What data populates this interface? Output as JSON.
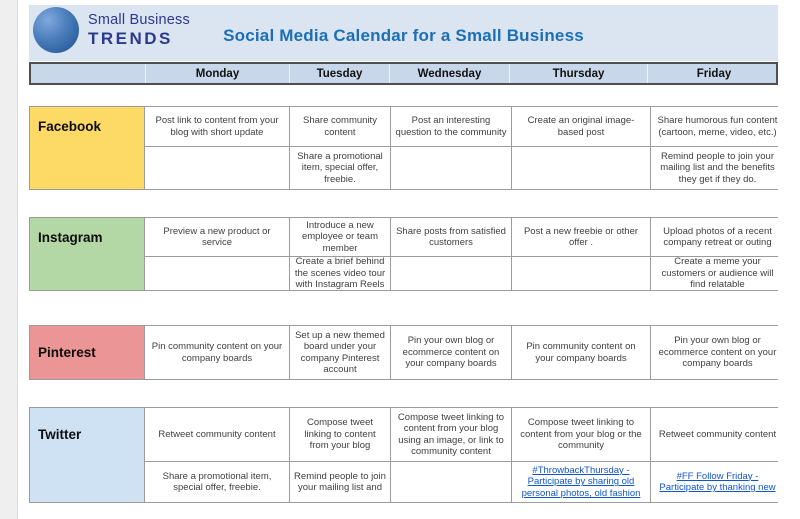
{
  "header": {
    "logo_line1": "Small Business",
    "logo_line2": "TRENDS",
    "title": "Social Media Calendar for a Small Business"
  },
  "colors": {
    "header_bg": "#dbe5f1",
    "day_row_bg": "#c8d7ea",
    "day_row_border": "#4f4f4f",
    "grid_border": "#9b9b9b",
    "title_text": "#1d6fb5",
    "logo_navy": "#2b3990",
    "link_blue": "#1155cc",
    "facebook": "#fdd965",
    "instagram": "#b4d7a6",
    "pinterest": "#ec9597",
    "twitter": "#cfe2f3"
  },
  "table": {
    "day_headers": [
      "Monday",
      "Tuesday",
      "Wednesday",
      "Thursday",
      "Friday"
    ],
    "platforms": [
      {
        "name": "Facebook",
        "color": "#fdd965",
        "rows": [
          [
            "Post link to content from your blog with short update",
            "Share community content",
            "Post an interesting question to the community",
            "Create an original image-based post",
            "Share humorous fun content (cartoon, meme, video, etc.)"
          ],
          [
            "",
            "Share a promotional item, special offer, freebie.",
            "",
            "",
            "Remind people to join your mailing list and the benefits they get if they do."
          ]
        ]
      },
      {
        "name": "Instagram",
        "color": "#b4d7a6",
        "rows": [
          [
            "Preview a new product or service",
            "Introduce a new employee or team member",
            "Share posts from satisfied customers",
            "Post a new freebie or other offer .",
            "Upload photos of a recent company retreat or outing"
          ],
          [
            "",
            "Create a brief behind the scenes video tour with Instagram Reels",
            "",
            "",
            "Create a meme your customers or audience will find relatable"
          ]
        ]
      },
      {
        "name": "Pinterest",
        "color": "#ec9597",
        "rows": [
          [
            "Pin community content on your company boards",
            "Set up a new themed board under your company Pinterest account",
            "Pin your own blog or ecommerce content on your company boards",
            "Pin community content on your company boards",
            "Pin your own blog or ecommerce content on your company boards"
          ]
        ]
      },
      {
        "name": "Twitter",
        "color": "#cfe2f3",
        "rows": [
          [
            "Retweet community content",
            "Compose tweet linking to content from your blog",
            "Compose tweet linking to content from your blog using an image, or link to community content",
            "Compose tweet linking to content from your blog or the community",
            "Retweet community content"
          ],
          [
            "Share a promotional item, special offer, freebie.",
            "Remind people to join your mailing list and",
            "",
            {
              "text": "#ThrowbackThursday - Participate by sharing old personal photos, old fashion",
              "link": true
            },
            {
              "text": "#FF Follow Friday - Participate by thanking new",
              "link": true
            }
          ]
        ]
      }
    ]
  }
}
